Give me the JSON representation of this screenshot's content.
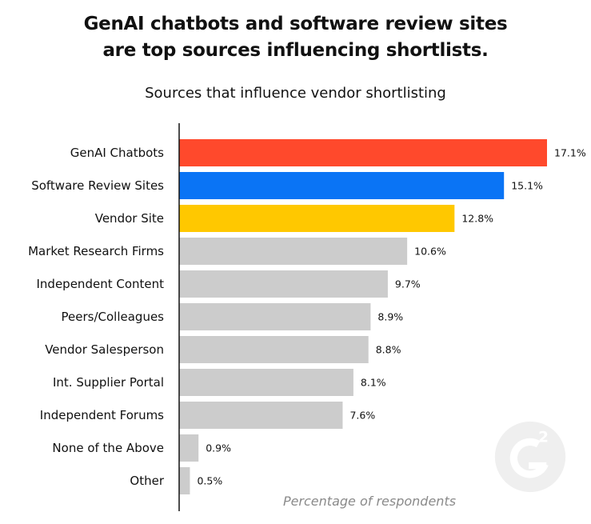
{
  "header": {
    "title_line1": "GenAI chatbots and software review sites",
    "title_line2": "are top sources influencing shortlists."
  },
  "logo": {
    "icon": "g2-logo-icon",
    "text": "G2"
  },
  "chart_data": {
    "type": "bar",
    "orientation": "horizontal",
    "title": "Sources that influence vendor shortlisting",
    "xlabel": "Percentage of respondents",
    "ylabel": "",
    "categories": [
      "GenAI Chatbots",
      "Software Review Sites",
      "Vendor Site",
      "Market Research Firms",
      "Independent Content",
      "Peers/Colleagues",
      "Vendor Salesperson",
      "Int. Supplier Portal",
      "Independent Forums",
      "None of the Above",
      "Other"
    ],
    "values": [
      17.1,
      15.1,
      12.8,
      10.6,
      9.7,
      8.9,
      8.8,
      8.1,
      7.6,
      0.9,
      0.5
    ],
    "value_labels": [
      "17.1%",
      "15.1%",
      "12.8%",
      "10.6%",
      "9.7%",
      "8.9%",
      "8.8%",
      "8.1%",
      "7.6%",
      "0.9%",
      "0.5%"
    ],
    "colors": [
      "#ff492c",
      "#0a74f5",
      "#ffc800",
      "#cccccc",
      "#cccccc",
      "#cccccc",
      "#cccccc",
      "#cccccc",
      "#cccccc",
      "#cccccc",
      "#cccccc"
    ],
    "xlim": [
      0,
      17.1
    ],
    "grid": false,
    "legend": "none"
  }
}
